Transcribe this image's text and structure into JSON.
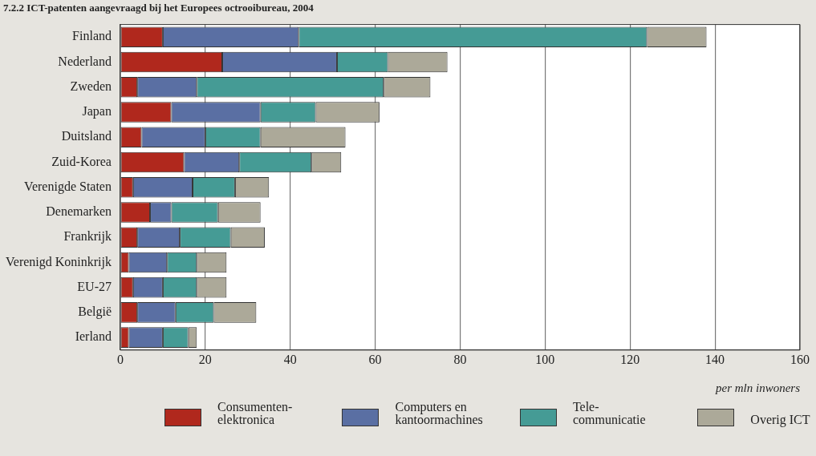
{
  "chart_data": {
    "type": "bar",
    "orientation": "horizontal",
    "stacked": true,
    "title": "7.2.2 ICT-patenten aangevraagd bij het Europees octrooibureau, 2004",
    "xlabel": "per mln inwoners",
    "categories": [
      "Finland",
      "Nederland",
      "Zweden",
      "Japan",
      "Duitsland",
      "Zuid-Korea",
      "Verenigde Staten",
      "Denemarken",
      "Frankrijk",
      "Verenigd Koninkrijk",
      "EU-27",
      "België",
      "Ierland"
    ],
    "series": [
      {
        "name": "Consumenten-\nelektronica",
        "color": "#b0281d",
        "values": [
          10,
          24,
          4,
          12,
          5,
          15,
          3,
          7,
          4,
          2,
          3,
          4,
          2
        ]
      },
      {
        "name": "Computers en\nkantoormachines",
        "color": "#5a6fa3",
        "values": [
          32,
          27,
          14,
          21,
          15,
          13,
          14,
          5,
          10,
          9,
          7,
          9,
          8
        ]
      },
      {
        "name": "Tele-\ncommunicatie",
        "color": "#459b95",
        "values": [
          82,
          12,
          44,
          13,
          13,
          17,
          10,
          11,
          12,
          7,
          8,
          9,
          6
        ]
      },
      {
        "name": "Overig ICT",
        "color": "#aca999",
        "values": [
          14,
          14,
          11,
          15,
          20,
          7,
          8,
          10,
          8,
          7,
          7,
          10,
          2
        ]
      }
    ],
    "xlim": [
      0,
      160
    ],
    "xticks": [
      0,
      20,
      40,
      60,
      80,
      100,
      120,
      140,
      160
    ],
    "grid": "x",
    "legend": "bottom"
  }
}
